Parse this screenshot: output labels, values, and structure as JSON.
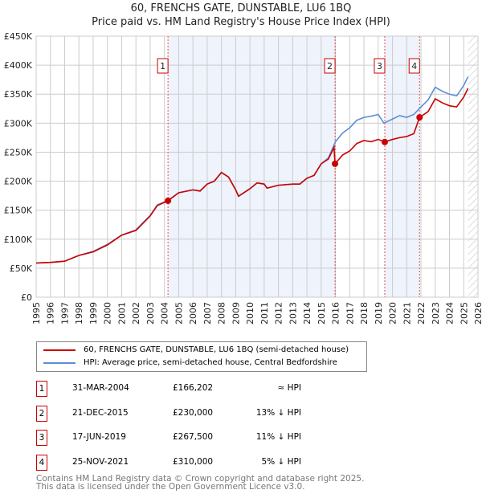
{
  "title": "60, FRENCHS GATE, DUNSTABLE, LU6 1BQ",
  "subtitle": "Price paid vs. HM Land Registry's House Price Index (HPI)",
  "chart_data": {
    "type": "line",
    "xlim": [
      1995,
      2026
    ],
    "ylim": [
      0,
      450000
    ],
    "x_ticks": [
      "1995",
      "1996",
      "1997",
      "1998",
      "1999",
      "2000",
      "2001",
      "2002",
      "2003",
      "2004",
      "2005",
      "2006",
      "2007",
      "2008",
      "2009",
      "2010",
      "2011",
      "2012",
      "2013",
      "2014",
      "2015",
      "2016",
      "2017",
      "2018",
      "2019",
      "2020",
      "2021",
      "2022",
      "2023",
      "2024",
      "2025",
      "2026"
    ],
    "y_ticks": [
      "£0",
      "£50K",
      "£100K",
      "£150K",
      "£200K",
      "£250K",
      "£300K",
      "£350K",
      "£400K",
      "£450K"
    ],
    "series": [
      {
        "name": "60, FRENCHS GATE, DUNSTABLE, LU6 1BQ (semi-detached house)",
        "color": "#cc0000",
        "points": [
          [
            1995,
            59
          ],
          [
            1996,
            60
          ],
          [
            1997,
            62
          ],
          [
            1998,
            72
          ],
          [
            1999,
            78
          ],
          [
            2000,
            90
          ],
          [
            2001,
            107
          ],
          [
            2002,
            115
          ],
          [
            2003,
            140
          ],
          [
            2003.5,
            158
          ],
          [
            2004.25,
            166
          ],
          [
            2005,
            180
          ],
          [
            2006,
            185
          ],
          [
            2006.5,
            183
          ],
          [
            2007,
            195
          ],
          [
            2007.5,
            200
          ],
          [
            2008,
            215
          ],
          [
            2008.5,
            207
          ],
          [
            2009,
            185
          ],
          [
            2009.2,
            174
          ],
          [
            2010,
            187
          ],
          [
            2010.5,
            197
          ],
          [
            2011,
            195
          ],
          [
            2011.2,
            188
          ],
          [
            2012,
            193
          ],
          [
            2013,
            195
          ],
          [
            2013.5,
            195
          ],
          [
            2014,
            205
          ],
          [
            2014.5,
            210
          ],
          [
            2015,
            230
          ],
          [
            2015.5,
            238
          ],
          [
            2015.9,
            258
          ],
          [
            2015.97,
            230
          ],
          [
            2016.5,
            245
          ],
          [
            2017,
            252
          ],
          [
            2017.5,
            265
          ],
          [
            2018,
            270
          ],
          [
            2018.5,
            268
          ],
          [
            2019,
            272
          ],
          [
            2019.46,
            267.5
          ],
          [
            2020,
            272
          ],
          [
            2020.5,
            275
          ],
          [
            2021,
            277
          ],
          [
            2021.5,
            282
          ],
          [
            2021.9,
            310
          ],
          [
            2022.5,
            320
          ],
          [
            2023,
            342
          ],
          [
            2023.5,
            335
          ],
          [
            2024,
            330
          ],
          [
            2024.5,
            328
          ],
          [
            2025,
            345
          ],
          [
            2025.3,
            360
          ]
        ]
      },
      {
        "name": "HPI: Average price, semi-detached house, Central Bedfordshire",
        "color": "#5b8fd6",
        "points": [
          [
            1995,
            59
          ],
          [
            1996,
            60
          ],
          [
            1997,
            62
          ],
          [
            1998,
            72
          ],
          [
            1999,
            79
          ],
          [
            2000,
            91
          ],
          [
            2001,
            107
          ],
          [
            2002,
            116
          ],
          [
            2003,
            141
          ],
          [
            2003.5,
            159
          ],
          [
            2004.25,
            167
          ],
          [
            2005,
            180
          ],
          [
            2006,
            185
          ],
          [
            2006.5,
            183
          ],
          [
            2007,
            195
          ],
          [
            2007.5,
            200
          ],
          [
            2008,
            215
          ],
          [
            2008.5,
            207
          ],
          [
            2009,
            185
          ],
          [
            2009.2,
            174
          ],
          [
            2010,
            187
          ],
          [
            2010.5,
            197
          ],
          [
            2011,
            195
          ],
          [
            2011.2,
            188
          ],
          [
            2012,
            193
          ],
          [
            2013,
            195
          ],
          [
            2013.5,
            195
          ],
          [
            2014,
            205
          ],
          [
            2014.5,
            210
          ],
          [
            2015,
            230
          ],
          [
            2015.5,
            240
          ],
          [
            2016,
            268
          ],
          [
            2016.5,
            283
          ],
          [
            2017,
            292
          ],
          [
            2017.5,
            305
          ],
          [
            2018,
            310
          ],
          [
            2018.5,
            312
          ],
          [
            2019,
            315
          ],
          [
            2019.4,
            300
          ],
          [
            2020,
            307
          ],
          [
            2020.5,
            313
          ],
          [
            2021,
            310
          ],
          [
            2021.5,
            315
          ],
          [
            2022,
            328
          ],
          [
            2022.5,
            340
          ],
          [
            2023,
            362
          ],
          [
            2023.5,
            355
          ],
          [
            2024,
            350
          ],
          [
            2024.5,
            347
          ],
          [
            2025,
            365
          ],
          [
            2025.3,
            380
          ]
        ]
      }
    ],
    "sales": [
      {
        "label": "1",
        "x": 2004.25,
        "y": 166202
      },
      {
        "label": "2",
        "x": 2015.97,
        "y": 230000
      },
      {
        "label": "3",
        "x": 2019.46,
        "y": 267500
      },
      {
        "label": "4",
        "x": 2021.9,
        "y": 310000
      }
    ],
    "shaded_ranges": [
      [
        2004.25,
        2015.97
      ],
      [
        2019.46,
        2021.9
      ]
    ],
    "forecast_from": 2025.3
  },
  "legend": {
    "property": "60, FRENCHS GATE, DUNSTABLE, LU6 1BQ (semi-detached house)",
    "hpi": "HPI: Average price, semi-detached house, Central Bedfordshire"
  },
  "sales": [
    {
      "num": "1",
      "date": "31-MAR-2004",
      "price": "£166,202",
      "hpi": "≈ HPI"
    },
    {
      "num": "2",
      "date": "21-DEC-2015",
      "price": "£230,000",
      "hpi": "13% ↓ HPI"
    },
    {
      "num": "3",
      "date": "17-JUN-2019",
      "price": "£267,500",
      "hpi": "11% ↓ HPI"
    },
    {
      "num": "4",
      "date": "25-NOV-2021",
      "price": "£310,000",
      "hpi": "5% ↓ HPI"
    }
  ],
  "footer": {
    "line1": "Contains HM Land Registry data © Crown copyright and database right 2025.",
    "line2": "This data is licensed under the Open Government Licence v3.0."
  }
}
